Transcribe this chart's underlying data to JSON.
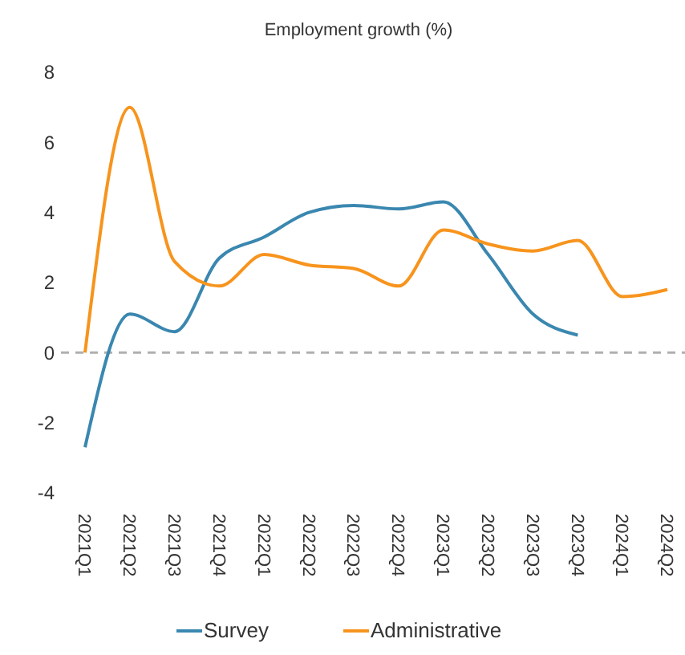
{
  "chart_data": {
    "type": "line",
    "title": "Employment growth (%)",
    "categories": [
      "2021Q1",
      "2021Q2",
      "2021Q3",
      "2021Q4",
      "2022Q1",
      "2022Q2",
      "2022Q3",
      "2022Q4",
      "2023Q1",
      "2023Q2",
      "2023Q3",
      "2023Q4",
      "2024Q1",
      "2024Q2"
    ],
    "series": [
      {
        "name": "Survey",
        "color": "#3a87b0",
        "values": [
          -2.7,
          1.1,
          0.6,
          2.7,
          3.3,
          4.0,
          4.2,
          4.1,
          4.3,
          2.8,
          1.1,
          0.5,
          null,
          null
        ]
      },
      {
        "name": "Administrative",
        "color": "#f7941d",
        "values": [
          0,
          7.0,
          2.6,
          1.9,
          2.8,
          2.5,
          2.4,
          1.9,
          3.5,
          3.1,
          2.9,
          3.2,
          1.6,
          1.8
        ]
      }
    ],
    "ylim": [
      -4,
      8
    ],
    "yticks": [
      -4,
      -2,
      0,
      2,
      4,
      6,
      8
    ],
    "grid": false,
    "legend": "bottom",
    "line_style": "solid",
    "ref_lines": [
      {
        "axis": "y",
        "value": 0,
        "color": "#b0b0b0",
        "line_style": "dashed"
      }
    ]
  }
}
